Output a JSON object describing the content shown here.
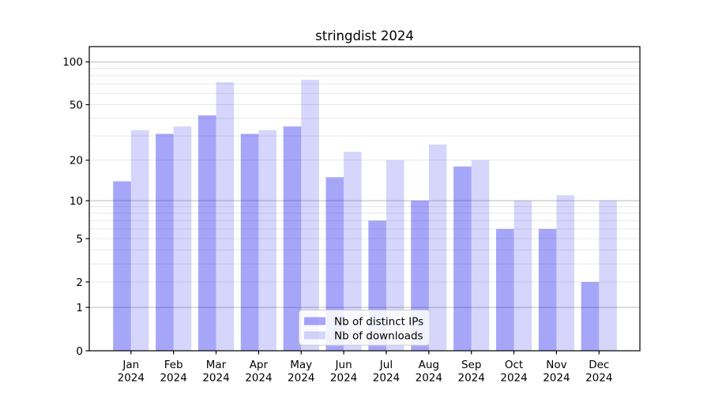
{
  "chart_data": {
    "type": "bar",
    "title": "stringdist 2024",
    "year": "2024",
    "categories": [
      "Jan",
      "Feb",
      "Mar",
      "Apr",
      "May",
      "Jun",
      "Jul",
      "Aug",
      "Sep",
      "Oct",
      "Nov",
      "Dec"
    ],
    "series": [
      {
        "name": "Nb of distinct IPs",
        "color": "#0000ee",
        "fill_opacity": 0.35,
        "values": [
          14,
          31,
          42,
          31,
          35,
          15,
          7,
          10,
          18,
          6,
          6,
          2
        ]
      },
      {
        "name": "Nb of downloads",
        "color": "#0000ee",
        "fill_opacity": 0.16,
        "values": [
          33,
          35,
          72,
          33,
          75,
          23,
          20,
          26,
          20,
          10,
          11,
          10
        ]
      }
    ],
    "xlabel": "",
    "ylabel": "",
    "scale": "log1p",
    "ylim": [
      0,
      128
    ],
    "y_ticks": [
      0,
      1,
      2,
      5,
      10,
      20,
      50,
      100
    ],
    "major_grid": [
      1,
      10,
      100
    ],
    "minor_grid": [
      2,
      3,
      4,
      5,
      6,
      7,
      8,
      9,
      20,
      30,
      40,
      50,
      60,
      70,
      80,
      90
    ],
    "grid": true,
    "legend_position": "lower center",
    "colors": {
      "background": "#ffffff",
      "spine": "#000000",
      "major_grid": "#bbbbbb",
      "minor_grid": "#e8e8e8",
      "legend_bg": "#ffffff",
      "legend_border": "#cccccc",
      "text": "#000000"
    }
  }
}
